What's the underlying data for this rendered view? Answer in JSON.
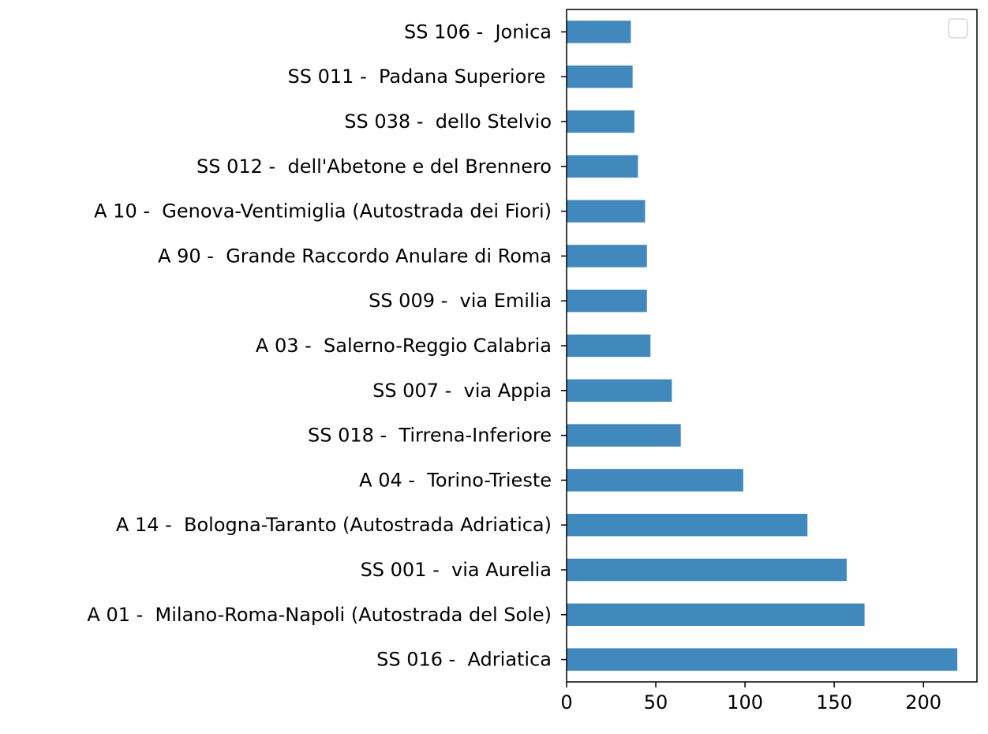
{
  "chart_data": {
    "type": "bar",
    "orientation": "horizontal",
    "title": "",
    "xlabel": "",
    "ylabel": "",
    "xlim": [
      0,
      230
    ],
    "x_ticks": [
      0,
      50,
      100,
      150,
      200
    ],
    "x_tick_labels": [
      "0",
      "50",
      "100",
      "150",
      "200"
    ],
    "grid": false,
    "legend": {
      "shown": true,
      "placement": "top-right",
      "entries": []
    },
    "bar_color": "#4189bd",
    "categories": [
      "SS 016 -  Adriatica",
      "A 01 -  Milano-Roma-Napoli (Autostrada del Sole)",
      "SS 001 -  via Aurelia",
      "A 14 -  Bologna-Taranto (Autostrada Adriatica)",
      "A 04 -  Torino-Trieste",
      "SS 018 -  Tirrena-Inferiore",
      "SS 007 -  via Appia",
      "A 03 -  Salerno-Reggio Calabria",
      "SS 009 -  via Emilia",
      "A 90 -  Grande Raccordo Anulare di Roma",
      "A 10 -  Genova-Ventimiglia (Autostrada dei Fiori)",
      "SS 012 -  dell'Abetone e del Brennero",
      "SS 038 -  dello Stelvio",
      "SS 011 -  Padana Superiore ",
      "SS 106 -  Jonica"
    ],
    "values": [
      219,
      167,
      157,
      135,
      99,
      64,
      59,
      47,
      45,
      45,
      44,
      40,
      38,
      37,
      36
    ]
  }
}
